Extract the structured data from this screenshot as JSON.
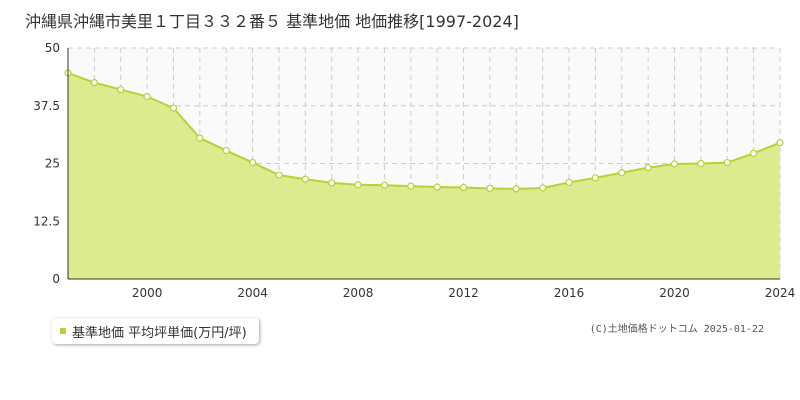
{
  "title": "沖縄県沖縄市美里１丁目３３２番５ 基準地価 地価推移[1997-2024]",
  "legend": {
    "label": "基準地価 平均坪単価(万円/坪)"
  },
  "credit": "(C)土地価格ドットコム 2025-01-22",
  "colors": {
    "fill": "#dbeb8e",
    "line": "#b5d334",
    "marker_fill": "#ffffff",
    "grid": "#cccccc",
    "axis": "#333333",
    "plot_bg": "#fafafa"
  },
  "chart_data": {
    "type": "area",
    "x": [
      1997,
      1998,
      1999,
      2000,
      2001,
      2002,
      2003,
      2004,
      2005,
      2006,
      2007,
      2008,
      2009,
      2010,
      2011,
      2012,
      2013,
      2014,
      2015,
      2016,
      2017,
      2018,
      2019,
      2020,
      2021,
      2022,
      2023,
      2024
    ],
    "series": [
      {
        "values": [
          44.6,
          42.5,
          41.0,
          39.5,
          37.0,
          30.5,
          27.8,
          25.2,
          22.5,
          21.6,
          20.8,
          20.4,
          20.3,
          20.1,
          19.9,
          19.8,
          19.6,
          19.5,
          19.7,
          20.9,
          21.9,
          23.0,
          24.1,
          24.9,
          25.0,
          25.2,
          27.2,
          29.5
        ]
      }
    ],
    "xlim": [
      1997,
      2024
    ],
    "ylim": [
      0,
      50
    ],
    "yticks": [
      0,
      12.5,
      25,
      37.5,
      50
    ],
    "ytick_labels": [
      "0",
      "12.5",
      "25",
      "37.5",
      "50"
    ],
    "xticks": [
      2000,
      2004,
      2008,
      2012,
      2016,
      2020,
      2024
    ],
    "xtick_labels": [
      "2000",
      "2004",
      "2008",
      "2012",
      "2016",
      "2020",
      "2024"
    ],
    "grid": true,
    "legend_position": "bottom-left"
  }
}
